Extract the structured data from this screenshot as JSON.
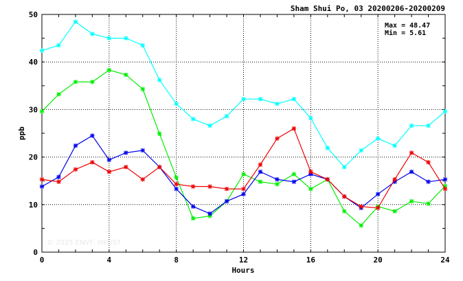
{
  "chart_data": {
    "type": "line",
    "title": "Sham Shui Po, 03 20200206-20200209",
    "xlabel": "Hours",
    "ylabel": "ppb",
    "xlim": [
      0,
      24
    ],
    "ylim": [
      0,
      50
    ],
    "xticks": [
      0,
      4,
      8,
      12,
      16,
      20,
      24
    ],
    "yticks": [
      0,
      10,
      20,
      30,
      40,
      50
    ],
    "grid": true,
    "stats": {
      "max_label": "Max = 48.47",
      "min_label": "Min =  5.61"
    },
    "watermark": "© 2025 ENVF, HKUST",
    "x": [
      0,
      1,
      2,
      3,
      4,
      5,
      6,
      7,
      8,
      9,
      10,
      11,
      12,
      13,
      14,
      15,
      16,
      17,
      18,
      19,
      20,
      21,
      22,
      23,
      24
    ],
    "series": [
      {
        "color": "#00ffff",
        "values": [
          42.4,
          43.5,
          48.47,
          45.9,
          45.0,
          45.0,
          43.5,
          36.2,
          31.2,
          28.0,
          26.6,
          28.6,
          32.2,
          32.2,
          31.2,
          32.2,
          28.2,
          21.9,
          17.9,
          21.4,
          23.9,
          22.4,
          26.6,
          26.6,
          29.6
        ]
      },
      {
        "color": "#00ee00",
        "values": [
          29.6,
          33.2,
          35.8,
          35.8,
          38.3,
          37.3,
          34.3,
          24.9,
          15.7,
          7.1,
          7.6,
          10.7,
          16.4,
          14.8,
          14.3,
          16.4,
          13.3,
          15.3,
          8.6,
          5.61,
          9.6,
          8.6,
          10.7,
          10.2,
          13.9
        ]
      },
      {
        "color": "#0000ee",
        "values": [
          13.8,
          15.8,
          22.4,
          24.5,
          19.4,
          20.9,
          21.4,
          17.9,
          13.3,
          9.6,
          8.1,
          10.7,
          12.2,
          16.9,
          15.3,
          14.8,
          16.4,
          15.3,
          11.7,
          9.3,
          12.2,
          14.8,
          16.9,
          14.8,
          15.3
        ]
      },
      {
        "color": "#ee0000",
        "values": [
          15.3,
          14.8,
          17.4,
          18.9,
          16.9,
          17.9,
          15.3,
          17.9,
          14.3,
          13.8,
          13.8,
          13.3,
          13.3,
          18.4,
          23.9,
          26.0,
          16.9,
          15.3,
          11.7,
          9.6,
          9.3,
          15.3,
          20.9,
          18.9,
          13.3
        ]
      }
    ]
  }
}
